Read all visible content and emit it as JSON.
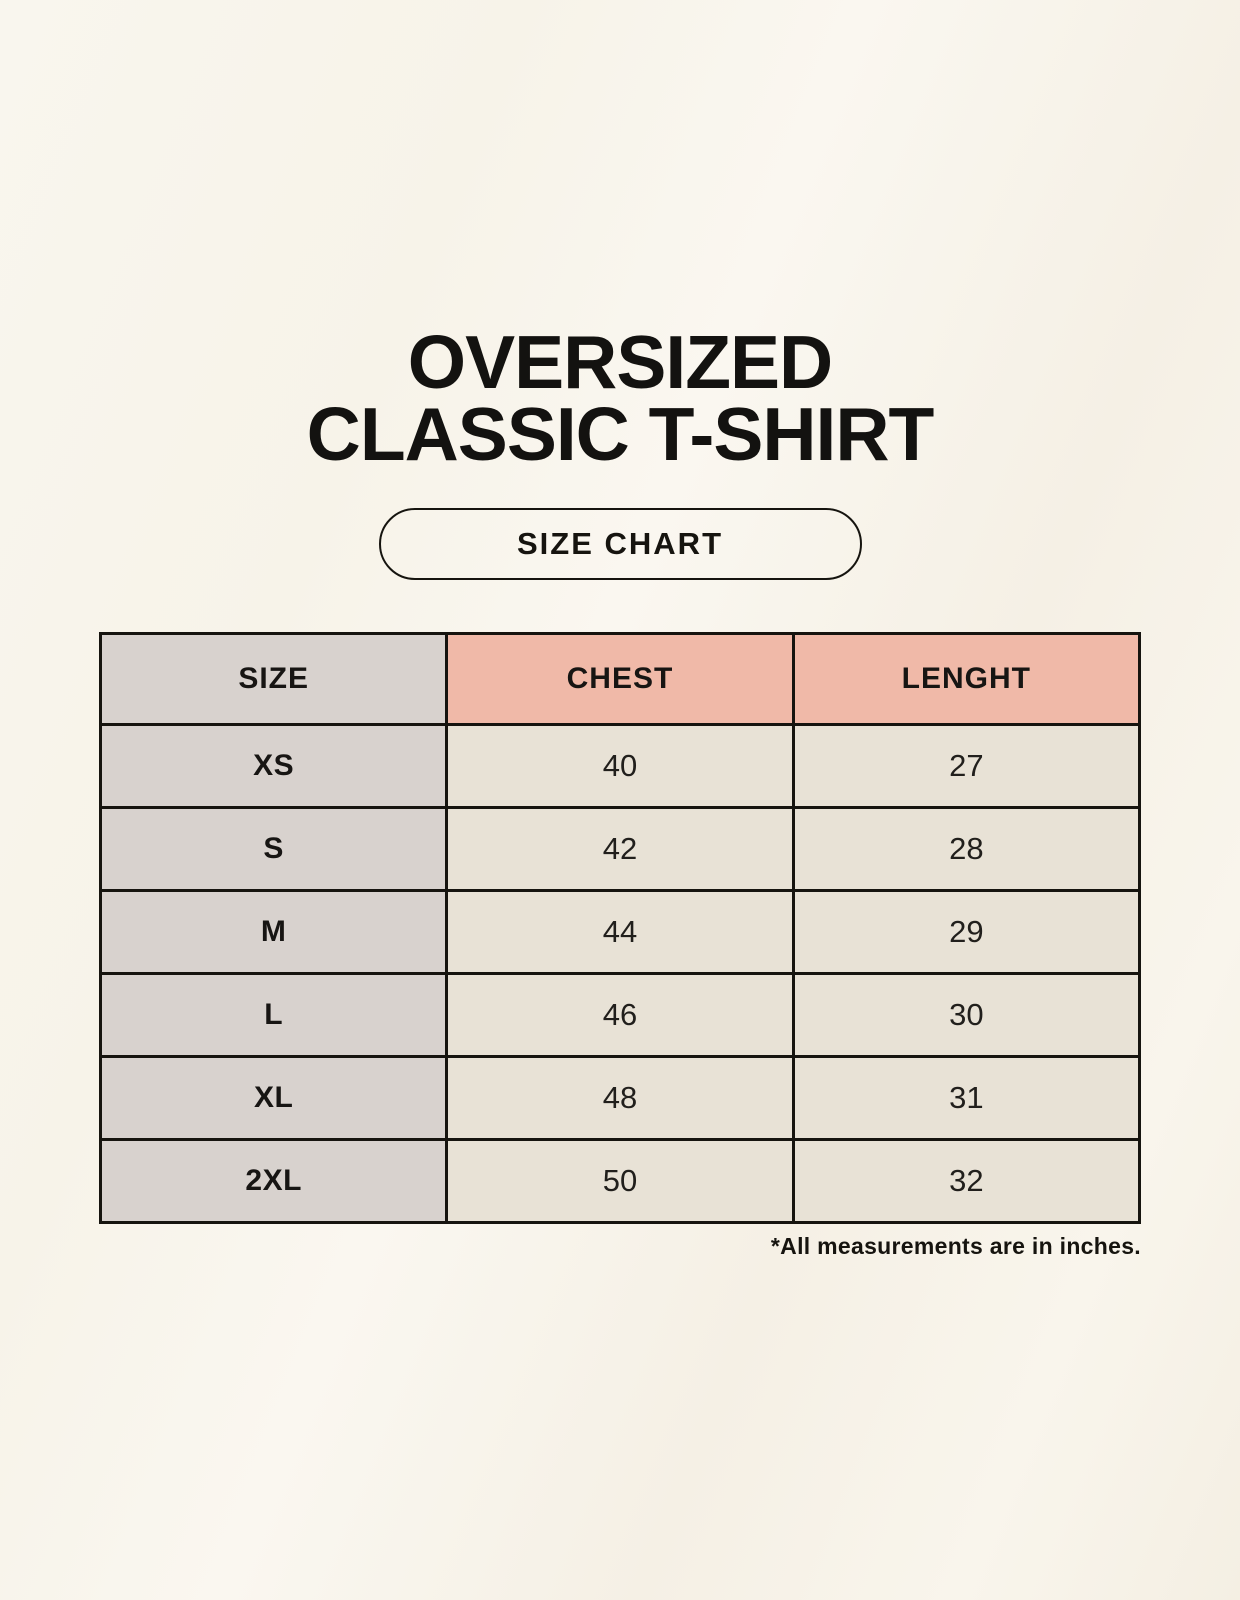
{
  "page": {
    "title_line1": "OVERSIZED",
    "title_line2": "CLASSIC T-SHIRT",
    "size_chart_label": "SIZE CHART",
    "footnote": "*All measurements are in inches."
  },
  "colors": {
    "background": "#f7f3e9",
    "header_accent": "#f0b9a8",
    "size_column_gray": "#d8d2ce",
    "data_cell_beige": "#e8e2d6",
    "border": "#16140f",
    "text": "#131210"
  },
  "chart_data": {
    "type": "table",
    "title": "OVERSIZED CLASSIC T-SHIRT",
    "subtitle": "SIZE CHART",
    "columns": [
      "SIZE",
      "CHEST",
      "LENGHT"
    ],
    "rows": [
      [
        "XS",
        "40",
        "27"
      ],
      [
        "S",
        "42",
        "28"
      ],
      [
        "M",
        "44",
        "29"
      ],
      [
        "L",
        "46",
        "30"
      ],
      [
        "XL",
        "48",
        "31"
      ],
      [
        "2XL",
        "50",
        "32"
      ]
    ],
    "note": "*All measurements are in inches."
  }
}
